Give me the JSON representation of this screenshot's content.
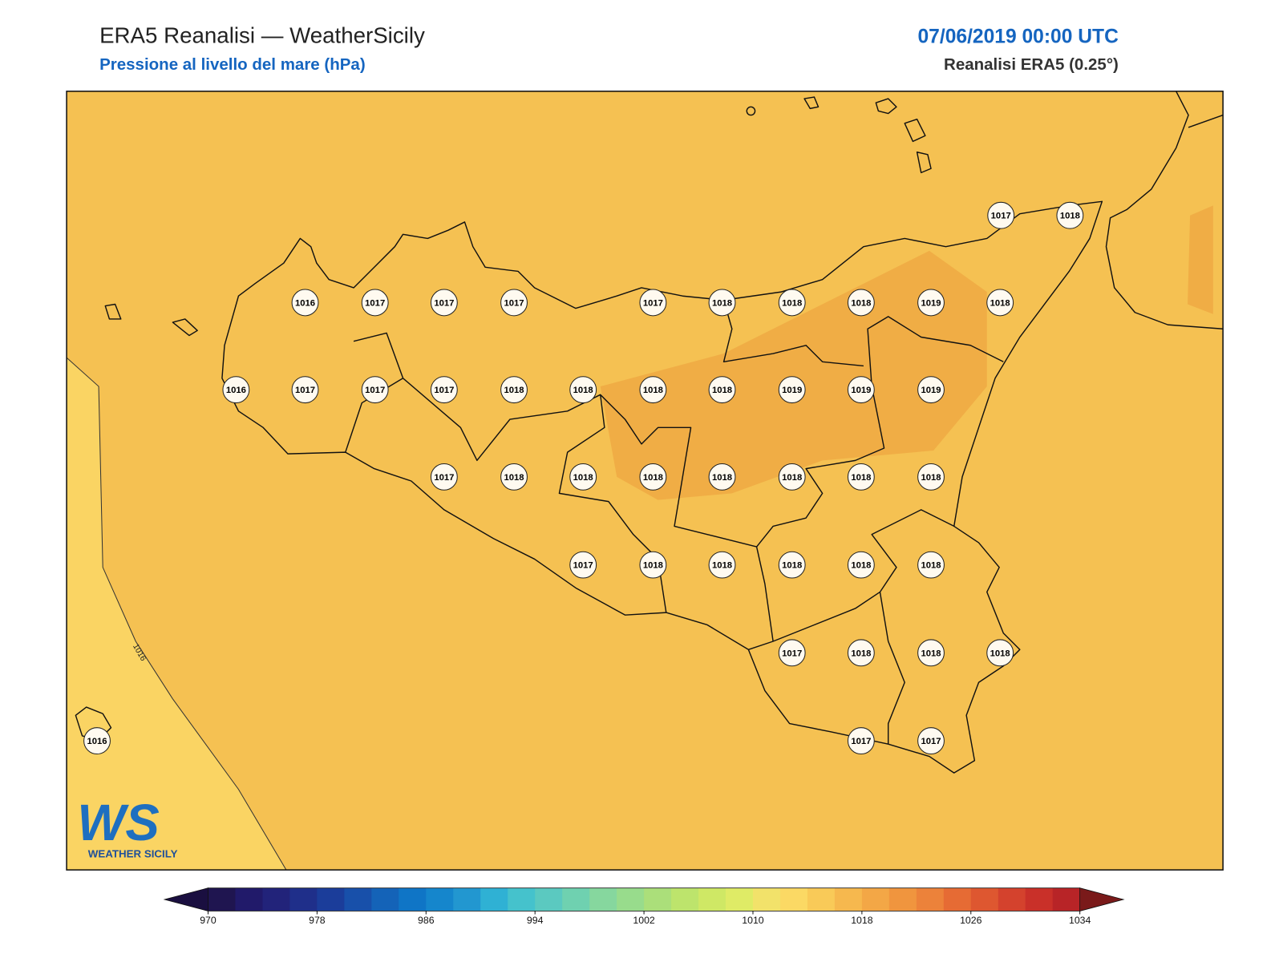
{
  "header": {
    "title": "ERA5 Reanalisi — WeatherSicily",
    "subtitle": "Pressione al livello del mare (hPa)",
    "datetime": "07/06/2019 00:00 UTC",
    "source": "Reanalisi ERA5 (0.25°)"
  },
  "map": {
    "contour_label": "1016",
    "stations": [
      1017,
      1018,
      1016,
      1017,
      1017,
      1017,
      1017,
      1018,
      1018,
      1018,
      1019,
      1018,
      1016,
      1017,
      1017,
      1017,
      1018,
      1018,
      1018,
      1018,
      1019,
      1019,
      1019,
      1017,
      1018,
      1018,
      1018,
      1018,
      1018,
      1018,
      1018,
      1017,
      1018,
      1018,
      1018,
      1018,
      1018,
      1017,
      1018,
      1018,
      1018,
      1016,
      1017,
      1017
    ]
  },
  "logo": {
    "mark": "WS",
    "name": "WEATHER SICILY"
  },
  "colorbar": {
    "range": [
      970,
      1034
    ],
    "ticks": [
      970,
      978,
      986,
      994,
      1002,
      1010,
      1018,
      1026,
      1034
    ],
    "colors": [
      "#1f1550",
      "#211a6a",
      "#22237a",
      "#1f2f8a",
      "#1b3d9a",
      "#1850aa",
      "#1463b8",
      "#0f75c6",
      "#1586cc",
      "#2297d0",
      "#2fb1d4",
      "#45c2cc",
      "#5bc9c0",
      "#6fd1b0",
      "#86d79e",
      "#98dc8c",
      "#abdf7a",
      "#bde46c",
      "#cfe865",
      "#dfeb66",
      "#f2e26a",
      "#fbd964",
      "#f9ca58",
      "#f6b84e",
      "#f3a746",
      "#f0953e",
      "#ec823a",
      "#e66b34",
      "#de5730",
      "#d4422d",
      "#c93029",
      "#b82427"
    ],
    "extend_colors": [
      "#1a0f40",
      "#7a1a1a"
    ]
  }
}
